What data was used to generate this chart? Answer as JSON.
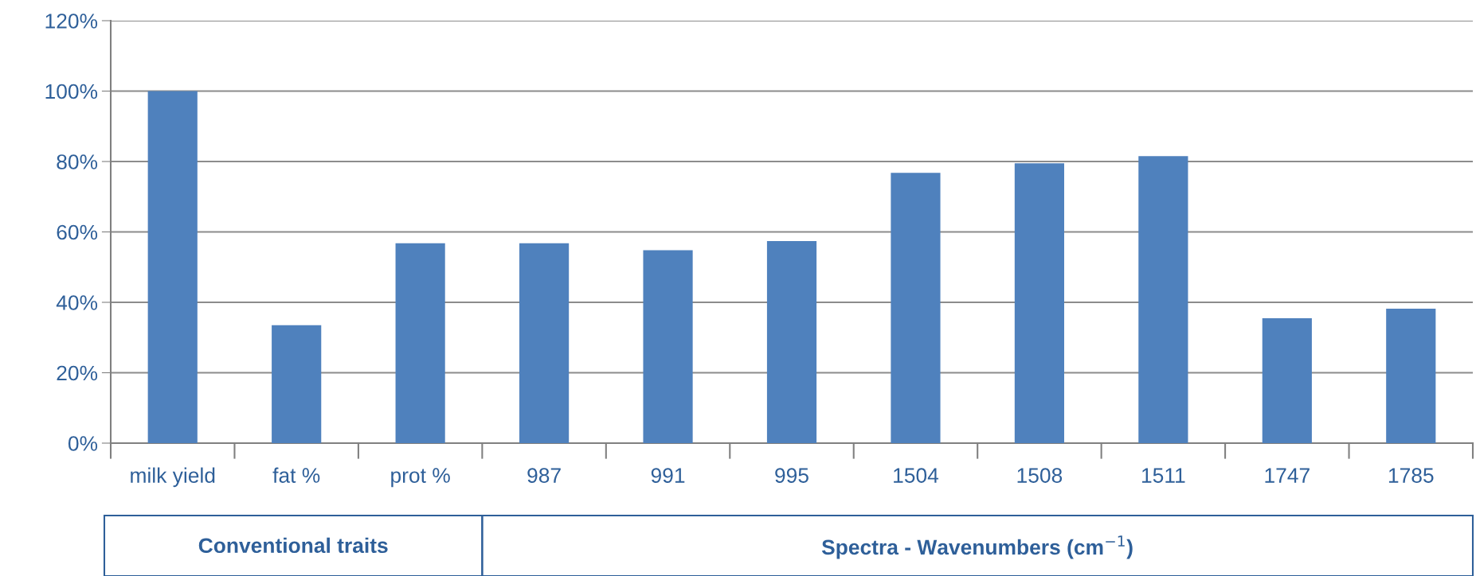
{
  "chart_data": {
    "type": "bar",
    "categories": [
      "milk yield",
      "fat %",
      "prot %",
      "987",
      "991",
      "995",
      "1504",
      "1508",
      "1511",
      "1747",
      "1785"
    ],
    "values": [
      100,
      33.5,
      56.8,
      56.8,
      54.8,
      57.4,
      76.8,
      79.5,
      81.5,
      35.5,
      38.2
    ],
    "color": "#4f81bd",
    "ylim": [
      0,
      120
    ],
    "yticks": [
      {
        "value": 0,
        "label": "0%"
      },
      {
        "value": 20,
        "label": "20%"
      },
      {
        "value": 40,
        "label": "40%"
      },
      {
        "value": 60,
        "label": "60%"
      },
      {
        "value": 80,
        "label": "80%"
      },
      {
        "value": 100,
        "label": "100%"
      },
      {
        "value": 120,
        "label": "120%"
      }
    ],
    "grid": "y",
    "annotations": [
      "Conventional traits",
      "Spectra - Wavenumbers (cm$^{−1}$)"
    ]
  }
}
